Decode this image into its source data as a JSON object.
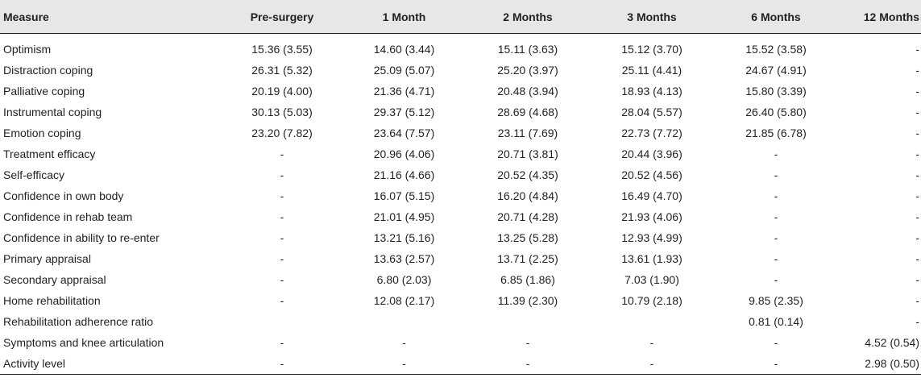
{
  "table": {
    "headers": [
      "Measure",
      "Pre-surgery",
      "1 Month",
      "2 Months",
      "3 Months",
      "6 Months",
      "12 Months"
    ],
    "rows": [
      [
        "Optimism",
        "15.36 (3.55)",
        "14.60 (3.44)",
        "15.11 (3.63)",
        "15.12 (3.70)",
        "15.52 (3.58)",
        "-"
      ],
      [
        "Distraction coping",
        "26.31 (5.32)",
        "25.09 (5.07)",
        "25.20 (3.97)",
        "25.11 (4.41)",
        "24.67 (4.91)",
        "-"
      ],
      [
        "Palliative coping",
        "20.19 (4.00)",
        "21.36 (4.71)",
        "20.48 (3.94)",
        "18.93 (4.13)",
        "15.80 (3.39)",
        "-"
      ],
      [
        "Instrumental coping",
        "30.13 (5.03)",
        "29.37 (5.12)",
        "28.69 (4.68)",
        "28.04 (5.57)",
        "26.40 (5.80)",
        "-"
      ],
      [
        "Emotion coping",
        "23.20 (7.82)",
        "23.64 (7.57)",
        "23.11 (7.69)",
        "22.73 (7.72)",
        "21.85 (6.78)",
        "-"
      ],
      [
        "Treatment efficacy",
        "-",
        "20.96 (4.06)",
        "20.71 (3.81)",
        "20.44 (3.96)",
        "-",
        "-"
      ],
      [
        "Self-efficacy",
        "-",
        "21.16 (4.66)",
        "20.52 (4.35)",
        "20.52 (4.56)",
        "-",
        "-"
      ],
      [
        "Confidence in own body",
        "-",
        "16.07 (5.15)",
        "16.20 (4.84)",
        "16.49 (4.70)",
        "-",
        "-"
      ],
      [
        "Confidence in rehab team",
        "-",
        "21.01 (4.95)",
        "20.71 (4.28)",
        "21.93 (4.06)",
        "-",
        "-"
      ],
      [
        "Confidence in ability to re-enter",
        "-",
        "13.21 (5.16)",
        "13.25 (5.28)",
        "12.93 (4.99)",
        "-",
        "-"
      ],
      [
        "Primary appraisal",
        "-",
        "13.63 (2.57)",
        "13.71 (2.25)",
        "13.61 (1.93)",
        "-",
        "-"
      ],
      [
        "Secondary appraisal",
        "-",
        "6.80 (2.03)",
        "6.85 (1.86)",
        "7.03 (1.90)",
        "-",
        "-"
      ],
      [
        "Home rehabilitation",
        "-",
        "12.08 (2.17)",
        "11.39 (2.30)",
        "10.79 (2.18)",
        "9.85 (2.35)",
        "-"
      ],
      [
        "Rehabilitation adherence ratio",
        "",
        "",
        "",
        "",
        "0.81 (0.14)",
        "-"
      ],
      [
        "Symptoms and knee articulation",
        "-",
        "-",
        "-",
        "-",
        "-",
        "4.52 (0.54)"
      ],
      [
        "Activity level",
        "-",
        "-",
        "-",
        "-",
        "-",
        "2.98 (0.50)"
      ]
    ]
  }
}
